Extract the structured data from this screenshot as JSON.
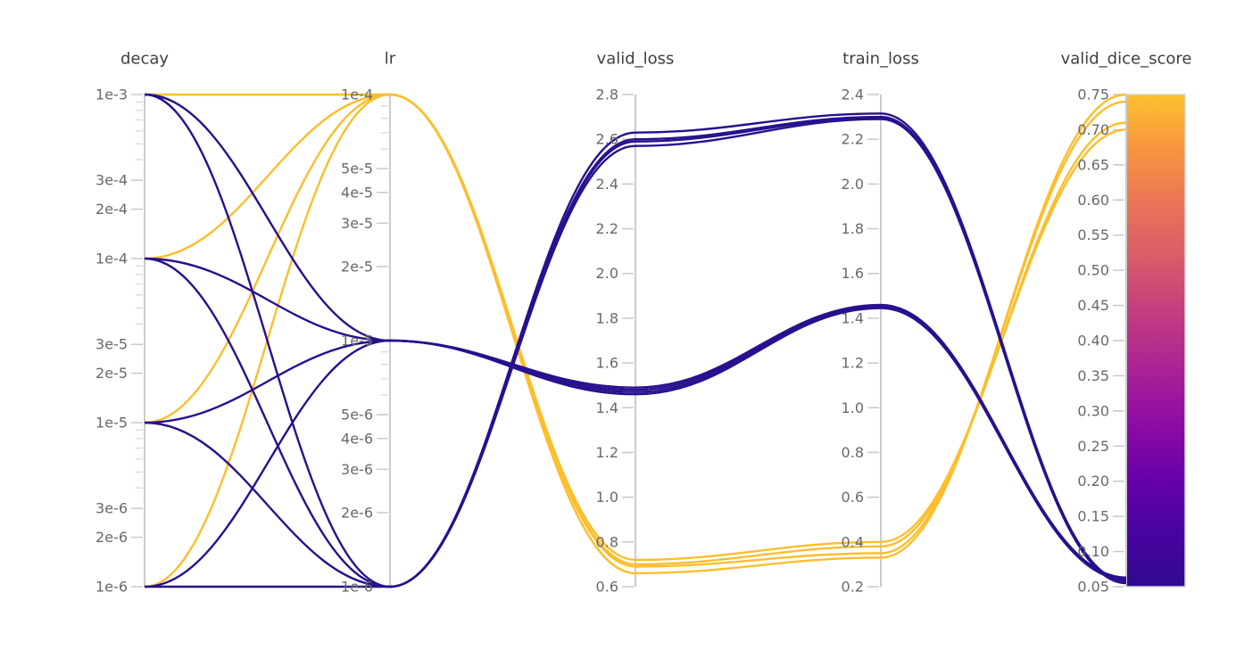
{
  "figure": {
    "kind": "parallel-coordinates-hyperparameter-sweep"
  },
  "colors": {
    "background": "#ffffff",
    "line_high": "#fcbe2c",
    "line_low": "#28108e",
    "axis_line": "#cbcbcb",
    "tick_mark": "#c9c9c9",
    "minor_tick_mark": "#d9d9d9",
    "tick_label": "#696969",
    "axis_title": "#3f3f3f",
    "colorbar_border": "#d6d6d6",
    "colorbar_stops": [
      "#fcc22e",
      "#f89540",
      "#ea7457",
      "#d85b69",
      "#c33d80",
      "#ab2394",
      "#8e0ca4",
      "#6901a8",
      "#4903a0",
      "#300a90"
    ]
  },
  "chart_data": {
    "type": "parallel-coordinates",
    "color_by": "valid_dice_score",
    "color_threshold": 0.5,
    "axes": [
      {
        "name": "decay",
        "label": "decay",
        "scale": "log",
        "min": 1e-06,
        "max": 0.001,
        "ticks": [
          "1e-3",
          "3e-4",
          "2e-4",
          "1e-4",
          "3e-5",
          "2e-5",
          "1e-5",
          "3e-6",
          "2e-6",
          "1e-6"
        ]
      },
      {
        "name": "lr",
        "label": "lr",
        "scale": "log",
        "min": 1e-06,
        "max": 0.0001,
        "ticks": [
          "1e-4",
          "5e-5",
          "4e-5",
          "3e-5",
          "2e-5",
          "1e-5",
          "5e-6",
          "4e-6",
          "3e-6",
          "2e-6",
          "1e-6"
        ]
      },
      {
        "name": "valid_loss",
        "label": "valid_loss",
        "scale": "linear",
        "min": 0.6,
        "max": 2.8,
        "ticks": [
          "2.8",
          "2.6",
          "2.4",
          "2.2",
          "2.0",
          "1.8",
          "1.6",
          "1.4",
          "1.2",
          "1.0",
          "0.8",
          "0.6"
        ]
      },
      {
        "name": "train_loss",
        "label": "train_loss",
        "scale": "linear",
        "min": 0.2,
        "max": 2.4,
        "ticks": [
          "2.4",
          "2.2",
          "2.0",
          "1.8",
          "1.6",
          "1.4",
          "1.2",
          "1.0",
          "0.8",
          "0.6",
          "0.4",
          "0.2"
        ]
      },
      {
        "name": "valid_dice_score",
        "label": "valid_dice_score",
        "scale": "linear",
        "min": 0.05,
        "max": 0.75,
        "ticks": [
          "0.75",
          "0.70",
          "0.65",
          "0.60",
          "0.55",
          "0.50",
          "0.45",
          "0.40",
          "0.35",
          "0.30",
          "0.25",
          "0.20",
          "0.15",
          "0.10",
          "0.05"
        ]
      }
    ],
    "runs": [
      {
        "decay": 0.001,
        "lr": 0.0001,
        "valid_loss": 0.72,
        "train_loss": 0.4,
        "valid_dice_score": 0.7
      },
      {
        "decay": 0.0001,
        "lr": 0.0001,
        "valid_loss": 0.7,
        "train_loss": 0.38,
        "valid_dice_score": 0.71
      },
      {
        "decay": 1e-05,
        "lr": 0.0001,
        "valid_loss": 0.69,
        "train_loss": 0.35,
        "valid_dice_score": 0.74
      },
      {
        "decay": 1e-06,
        "lr": 0.0001,
        "valid_loss": 0.66,
        "train_loss": 0.33,
        "valid_dice_score": 0.75
      },
      {
        "decay": 0.001,
        "lr": 1e-05,
        "valid_loss": 1.49,
        "train_loss": 1.46,
        "valid_dice_score": 0.063
      },
      {
        "decay": 0.0001,
        "lr": 1e-05,
        "valid_loss": 1.48,
        "train_loss": 1.455,
        "valid_dice_score": 0.062
      },
      {
        "decay": 1e-05,
        "lr": 1e-05,
        "valid_loss": 1.47,
        "train_loss": 1.45,
        "valid_dice_score": 0.061
      },
      {
        "decay": 1e-06,
        "lr": 1e-05,
        "valid_loss": 1.46,
        "train_loss": 1.445,
        "valid_dice_score": 0.06
      },
      {
        "decay": 0.001,
        "lr": 1e-06,
        "valid_loss": 2.63,
        "train_loss": 2.315,
        "valid_dice_score": 0.058
      },
      {
        "decay": 0.0001,
        "lr": 1e-06,
        "valid_loss": 2.6,
        "train_loss": 2.3,
        "valid_dice_score": 0.057
      },
      {
        "decay": 1e-05,
        "lr": 1e-06,
        "valid_loss": 2.59,
        "train_loss": 2.295,
        "valid_dice_score": 0.056
      },
      {
        "decay": 1e-06,
        "lr": 1e-06,
        "valid_loss": 2.57,
        "train_loss": 2.29,
        "valid_dice_score": 0.055
      }
    ],
    "colorbar": {
      "axis": "valid_dice_score",
      "top_value": 0.75,
      "bottom_value": 0.05
    }
  }
}
